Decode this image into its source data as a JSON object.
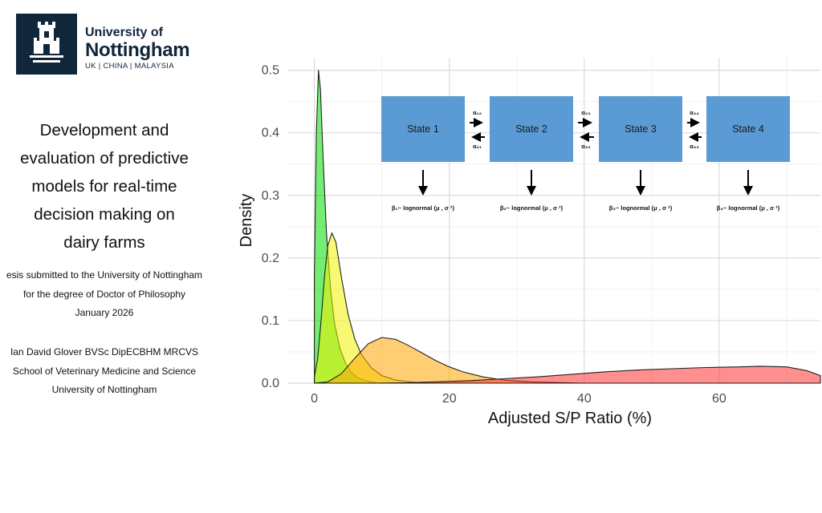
{
  "logo": {
    "line1": "University of",
    "line2": "Nottingham",
    "line3": "UK | CHINA | MALAYSIA",
    "brand_color": "#10263B"
  },
  "thesis": {
    "title_lines": [
      "Development and",
      "evaluation of predictive",
      "models for real-time",
      "decision making on",
      "dairy farms"
    ],
    "subtitle_lines": [
      "esis submitted to the University of Nottingham",
      "for the degree of Doctor of Philosophy",
      "January 2026"
    ],
    "author_lines": [
      "Ian David Glover BVSc DipECBHM MRCVS",
      "School of Veterinary Medicine and Science",
      "University of Nottingham"
    ]
  },
  "diagram": {
    "box_color": "#5B9BD5",
    "states": [
      {
        "label": "State 1",
        "dist": "β₁~ lognormal (μ , σ ²)"
      },
      {
        "label": "State 2",
        "dist": "β₂~ lognormal (μ , σ ²)"
      },
      {
        "label": "State 3",
        "dist": "β₃~ lognormal (μ , σ ²)"
      },
      {
        "label": "State 4",
        "dist": "β₄~ lognormal (μ , σ ²)"
      }
    ],
    "transitions": [
      {
        "forward": "α₁₂",
        "backward": "α₂₁"
      },
      {
        "forward": "α₂₃",
        "backward": "α₃₂"
      },
      {
        "forward": "α₃₄",
        "backward": "α₄₃"
      }
    ]
  },
  "chart_data": {
    "type": "area",
    "title": "",
    "xlabel": "Adjusted S/P Ratio (%)",
    "ylabel": "Density",
    "xlim": [
      -4,
      75
    ],
    "ylim": [
      0,
      0.52
    ],
    "xticks": [
      0,
      20,
      40,
      60
    ],
    "xtick_labels": [
      "0",
      "20",
      "40",
      "60"
    ],
    "yticks": [
      0,
      0.1,
      0.2,
      0.3,
      0.4,
      0.5
    ],
    "ytick_labels": [
      "0.0",
      "0.1",
      "0.2",
      "0.3",
      "0.4",
      "0.5"
    ],
    "grid": true,
    "series": [
      {
        "name": "State 1",
        "color": "#00E000",
        "x": [
          0,
          0.3,
          0.6,
          0.9,
          1.3,
          1.8,
          2.4,
          3.0,
          3.8,
          4.6,
          5.4,
          6.4,
          7.5,
          9.0
        ],
        "y": [
          0.17,
          0.4,
          0.5,
          0.47,
          0.36,
          0.24,
          0.15,
          0.095,
          0.055,
          0.032,
          0.018,
          0.009,
          0.004,
          0.001
        ]
      },
      {
        "name": "State 2",
        "color": "#F2F200",
        "x": [
          0,
          0.5,
          1.0,
          1.5,
          2.0,
          2.6,
          3.2,
          4.0,
          5.0,
          6.0,
          7.0,
          8.5,
          10,
          12,
          15
        ],
        "y": [
          0.01,
          0.04,
          0.1,
          0.17,
          0.22,
          0.24,
          0.225,
          0.17,
          0.11,
          0.07,
          0.045,
          0.024,
          0.012,
          0.005,
          0.001
        ]
      },
      {
        "name": "State 3",
        "color": "#FFA500",
        "x": [
          0,
          2,
          4,
          6,
          8,
          10,
          12,
          14,
          16,
          18,
          20,
          22,
          25,
          28,
          32,
          36,
          40
        ],
        "y": [
          0.0,
          0.002,
          0.015,
          0.04,
          0.063,
          0.073,
          0.07,
          0.06,
          0.048,
          0.036,
          0.026,
          0.018,
          0.01,
          0.005,
          0.002,
          0.001,
          0.0
        ]
      },
      {
        "name": "State 4",
        "color": "#FF3333",
        "x": [
          0,
          8,
          13,
          18,
          23,
          28,
          33,
          38,
          43,
          48,
          53,
          58,
          63,
          66,
          70,
          73,
          75
        ],
        "y": [
          0.0,
          0.0,
          0.0005,
          0.002,
          0.004,
          0.007,
          0.01,
          0.014,
          0.018,
          0.021,
          0.023,
          0.025,
          0.026,
          0.027,
          0.026,
          0.02,
          0.012
        ]
      }
    ]
  }
}
